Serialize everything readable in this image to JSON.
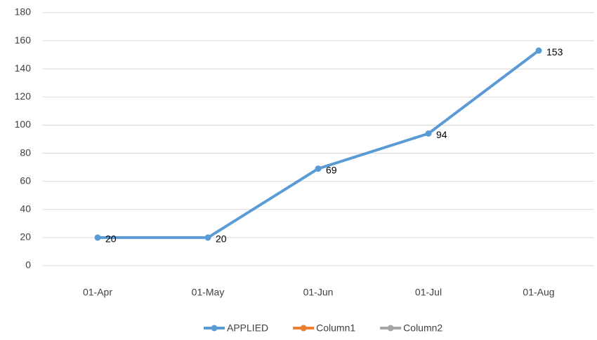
{
  "chart_data": {
    "type": "line",
    "categories": [
      "01-Apr",
      "01-May",
      "01-Jun",
      "01-Jul",
      "01-Aug"
    ],
    "series": [
      {
        "name": "APPLIED",
        "color": "#5b9bd5",
        "values": [
          20,
          20,
          69,
          94,
          153
        ]
      },
      {
        "name": "Column1",
        "color": "#ed7d31",
        "values": [
          null,
          null,
          null,
          null,
          null
        ]
      },
      {
        "name": "Column2",
        "color": "#a5a5a5",
        "values": [
          null,
          null,
          null,
          null,
          null
        ]
      }
    ],
    "ylim": [
      0,
      180
    ],
    "yticks": [
      0,
      20,
      40,
      60,
      80,
      100,
      120,
      140,
      160,
      180
    ],
    "grid": true,
    "legend": "bottom"
  }
}
